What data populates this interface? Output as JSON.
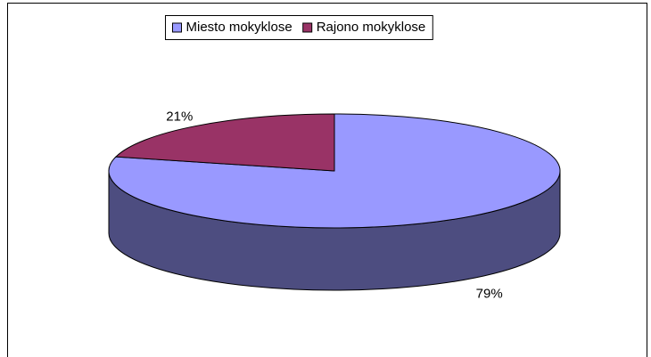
{
  "chart_data": {
    "type": "pie3d",
    "categories": [
      "Miesto mokyklose",
      "Rajono mokyklose"
    ],
    "values": [
      79,
      21
    ],
    "value_labels": [
      "79%",
      "21%"
    ],
    "colors": [
      "#9999ff",
      "#993366"
    ]
  }
}
